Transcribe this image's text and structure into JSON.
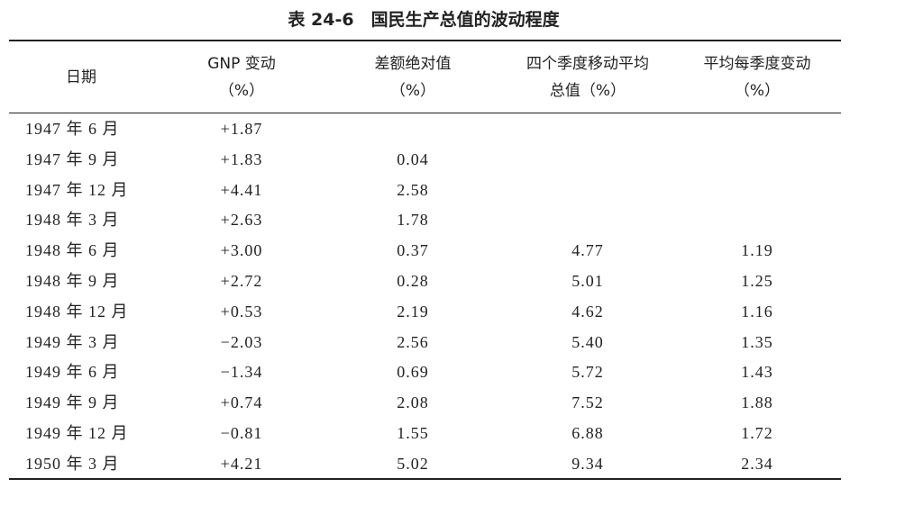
{
  "title": "表 24-6　国民生产总值的波动程度",
  "table": {
    "headers": [
      [
        "日期"
      ],
      [
        "GNP 变动",
        "（%）"
      ],
      [
        "差额绝对值",
        "（%）"
      ],
      [
        "四个季度移动平均",
        "总值（%）"
      ],
      [
        "平均每季度变动",
        "（%）"
      ]
    ],
    "rows": [
      [
        "1947 年 6 月",
        "+1.87",
        null,
        null,
        null
      ],
      [
        "1947 年 9 月",
        "+1.83",
        "0.04",
        null,
        null
      ],
      [
        "1947 年 12 月",
        "+4.41",
        "2.58",
        null,
        null
      ],
      [
        "1948 年 3 月",
        "+2.63",
        "1.78",
        null,
        null
      ],
      [
        "1948 年 6 月",
        "+3.00",
        "0.37",
        "4.77",
        "1.19"
      ],
      [
        "1948 年 9 月",
        "+2.72",
        "0.28",
        "5.01",
        "1.25"
      ],
      [
        "1948 年 12 月",
        "+0.53",
        "2.19",
        "4.62",
        "1.16"
      ],
      [
        "1949 年 3 月",
        "−2.03",
        "2.56",
        "5.40",
        "1.35"
      ],
      [
        "1949 年 6 月",
        "−1.34",
        "0.69",
        "5.72",
        "1.43"
      ],
      [
        "1949 年 9 月",
        "+0.74",
        "2.08",
        "7.52",
        "1.88"
      ],
      [
        "1949 年 12 月",
        "−0.81",
        "1.55",
        "6.88",
        "1.72"
      ],
      [
        "1950 年 3 月",
        "+4.21",
        "5.02",
        "9.34",
        "2.34"
      ]
    ]
  }
}
